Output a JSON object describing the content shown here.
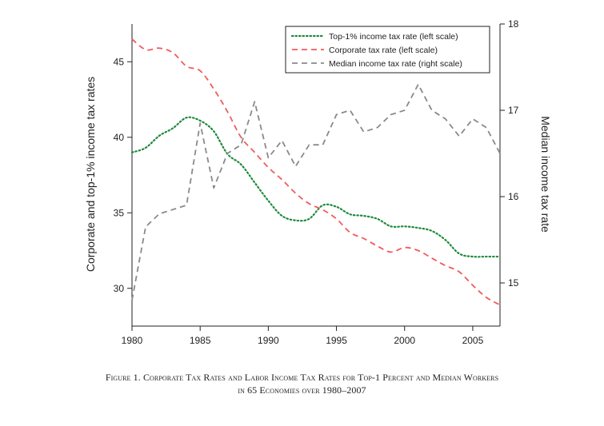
{
  "chart_data": {
    "type": "line",
    "xlabel": "",
    "ylabel_left": "Corporate and top-1% income tax rates",
    "ylabel_right": "Median income tax rate",
    "xlim": [
      1980,
      2007
    ],
    "ylim_left": [
      27.5,
      47.5
    ],
    "ylim_right": [
      14.5,
      18.0
    ],
    "xticks": [
      1980,
      1985,
      1990,
      1995,
      2000,
      2005
    ],
    "yticks_left": [
      30,
      35,
      40,
      45
    ],
    "yticks_right": [
      15,
      16,
      17,
      18
    ],
    "legend_position": "top-right",
    "grid": false,
    "series": [
      {
        "name": "Top-1% income tax rate (left scale)",
        "axis": "left",
        "style": "dotted",
        "color": "#1e8a3c",
        "x": [
          1980,
          1981,
          1982,
          1983,
          1984,
          1985,
          1986,
          1987,
          1988,
          1989,
          1990,
          1991,
          1992,
          1993,
          1994,
          1995,
          1996,
          1997,
          1998,
          1999,
          2000,
          2001,
          2002,
          2003,
          2004,
          2005,
          2006,
          2007
        ],
        "values": [
          39.0,
          39.3,
          40.1,
          40.6,
          41.3,
          41.1,
          40.4,
          38.9,
          38.2,
          37.0,
          35.8,
          34.8,
          34.5,
          34.6,
          35.5,
          35.4,
          34.9,
          34.8,
          34.6,
          34.1,
          34.1,
          34.0,
          33.8,
          33.2,
          32.3,
          32.1,
          32.1,
          32.1
        ]
      },
      {
        "name": "Corporate tax rate (left scale)",
        "axis": "left",
        "style": "dashed",
        "color": "#f05b5b",
        "x": [
          1980,
          1981,
          1982,
          1983,
          1984,
          1985,
          1986,
          1987,
          1988,
          1989,
          1990,
          1991,
          1992,
          1993,
          1994,
          1995,
          1996,
          1997,
          1998,
          1999,
          2000,
          2001,
          2002,
          2003,
          2004,
          2005,
          2006,
          2007
        ],
        "values": [
          46.5,
          45.8,
          45.9,
          45.6,
          44.7,
          44.4,
          43.2,
          41.7,
          40.0,
          39.0,
          38.0,
          37.2,
          36.3,
          35.6,
          35.2,
          34.6,
          33.7,
          33.3,
          32.8,
          32.4,
          32.7,
          32.5,
          32.0,
          31.5,
          31.1,
          30.2,
          29.4,
          28.9
        ]
      },
      {
        "name": "Median income tax rate (right scale)",
        "axis": "right",
        "style": "dashed",
        "color": "#8a8a8a",
        "x": [
          1980,
          1981,
          1982,
          1983,
          1984,
          1985,
          1986,
          1987,
          1988,
          1989,
          1990,
          1991,
          1992,
          1993,
          1994,
          1995,
          1996,
          1997,
          1998,
          1999,
          2000,
          2001,
          2002,
          2003,
          2004,
          2005,
          2006,
          2007
        ],
        "values": [
          14.8,
          15.65,
          15.8,
          15.85,
          15.9,
          16.85,
          16.1,
          16.5,
          16.6,
          17.1,
          16.45,
          16.65,
          16.35,
          16.6,
          16.6,
          16.95,
          17.0,
          16.75,
          16.8,
          16.95,
          17.0,
          17.3,
          17.0,
          16.9,
          16.7,
          16.9,
          16.8,
          16.5
        ]
      }
    ]
  },
  "caption": {
    "line1": "Figure 1. Corporate Tax Rates and Labor Income Tax Rates for Top-1 Percent and Median Workers",
    "line2": "in 65 Economies over 1980–2007"
  }
}
